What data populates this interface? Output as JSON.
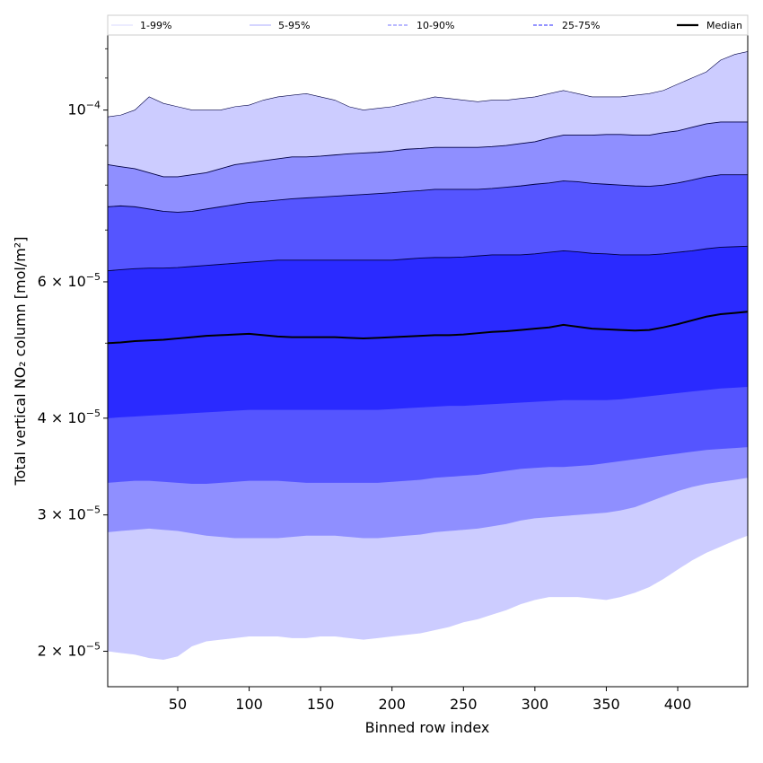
{
  "chart_data": {
    "type": "area",
    "title": "",
    "xlabel": "Binned row index",
    "ylabel": "Total vertical NO₂ column [mol/m²]",
    "xlim": [
      1,
      449
    ],
    "ylim": [
      1.8e-05,
      0.000125
    ],
    "yscale": "log",
    "grid": false,
    "legend_placement": "top, spanning full width",
    "x_ticks": [
      50,
      100,
      150,
      200,
      250,
      300,
      350,
      400
    ],
    "y_ticks": [
      {
        "value": 0.0001,
        "mantissa": "",
        "base": "10",
        "exp": "−4"
      },
      {
        "value": 6e-05,
        "mantissa": "6 × ",
        "base": "10",
        "exp": "−5"
      },
      {
        "value": 4e-05,
        "mantissa": "4 × ",
        "base": "10",
        "exp": "−5"
      },
      {
        "value": 3e-05,
        "mantissa": "3 × ",
        "base": "10",
        "exp": "−5"
      },
      {
        "value": 2e-05,
        "mantissa": "2 × ",
        "base": "10",
        "exp": "−5"
      }
    ],
    "x": [
      1,
      10,
      20,
      30,
      40,
      50,
      60,
      70,
      80,
      90,
      100,
      110,
      120,
      130,
      140,
      150,
      160,
      170,
      180,
      190,
      200,
      210,
      220,
      230,
      240,
      250,
      260,
      270,
      280,
      290,
      300,
      310,
      320,
      330,
      340,
      350,
      360,
      370,
      380,
      390,
      400,
      410,
      420,
      430,
      440,
      449
    ],
    "bands": [
      {
        "name": "1-99%",
        "color": "#ccccff",
        "upper": [
          9.8e-05,
          9.85e-05,
          0.0001,
          0.000104,
          0.000102,
          0.000101,
          0.0001,
          0.0001,
          0.0001,
          0.000101,
          0.0001015,
          0.000103,
          0.000104,
          0.0001045,
          0.000105,
          0.000104,
          0.000103,
          0.000101,
          0.0001,
          0.0001005,
          0.000101,
          0.000102,
          0.000103,
          0.000104,
          0.0001035,
          0.000103,
          0.0001025,
          0.000103,
          0.000103,
          0.0001035,
          0.000104,
          0.000105,
          0.000106,
          0.000105,
          0.000104,
          0.000104,
          0.000104,
          0.0001045,
          0.000105,
          0.000106,
          0.000108,
          0.00011,
          0.000112,
          0.000116,
          0.000118,
          0.000119
        ],
        "lower": [
          2e-05,
          1.99e-05,
          1.98e-05,
          1.96e-05,
          1.95e-05,
          1.97e-05,
          2.03e-05,
          2.06e-05,
          2.07e-05,
          2.08e-05,
          2.09e-05,
          2.09e-05,
          2.09e-05,
          2.08e-05,
          2.08e-05,
          2.09e-05,
          2.09e-05,
          2.08e-05,
          2.07e-05,
          2.08e-05,
          2.09e-05,
          2.1e-05,
          2.11e-05,
          2.13e-05,
          2.15e-05,
          2.18e-05,
          2.2e-05,
          2.23e-05,
          2.26e-05,
          2.3e-05,
          2.33e-05,
          2.35e-05,
          2.35e-05,
          2.35e-05,
          2.34e-05,
          2.33e-05,
          2.35e-05,
          2.38e-05,
          2.42e-05,
          2.48e-05,
          2.55e-05,
          2.62e-05,
          2.68e-05,
          2.73e-05,
          2.78e-05,
          2.82e-05
        ]
      },
      {
        "name": "5-95%",
        "color": "#8f8fff",
        "upper": [
          8.5e-05,
          8.45e-05,
          8.4e-05,
          8.3e-05,
          8.2e-05,
          8.2e-05,
          8.25e-05,
          8.3e-05,
          8.4e-05,
          8.5e-05,
          8.55e-05,
          8.6e-05,
          8.65e-05,
          8.7e-05,
          8.7e-05,
          8.72e-05,
          8.75e-05,
          8.78e-05,
          8.8e-05,
          8.82e-05,
          8.85e-05,
          8.9e-05,
          8.92e-05,
          8.95e-05,
          8.95e-05,
          8.95e-05,
          8.95e-05,
          8.97e-05,
          9e-05,
          9.05e-05,
          9.1e-05,
          9.2e-05,
          9.28e-05,
          9.28e-05,
          9.28e-05,
          9.3e-05,
          9.3e-05,
          9.28e-05,
          9.28e-05,
          9.35e-05,
          9.4e-05,
          9.5e-05,
          9.6e-05,
          9.65e-05,
          9.65e-05,
          9.65e-05
        ],
        "lower": [
          2.85e-05,
          2.86e-05,
          2.87e-05,
          2.88e-05,
          2.87e-05,
          2.86e-05,
          2.84e-05,
          2.82e-05,
          2.81e-05,
          2.8e-05,
          2.8e-05,
          2.8e-05,
          2.8e-05,
          2.81e-05,
          2.82e-05,
          2.82e-05,
          2.82e-05,
          2.81e-05,
          2.8e-05,
          2.8e-05,
          2.81e-05,
          2.82e-05,
          2.83e-05,
          2.85e-05,
          2.86e-05,
          2.87e-05,
          2.88e-05,
          2.9e-05,
          2.92e-05,
          2.95e-05,
          2.97e-05,
          2.98e-05,
          2.99e-05,
          3e-05,
          3.01e-05,
          3.02e-05,
          3.04e-05,
          3.07e-05,
          3.12e-05,
          3.17e-05,
          3.22e-05,
          3.26e-05,
          3.29e-05,
          3.31e-05,
          3.33e-05,
          3.35e-05
        ]
      },
      {
        "name": "10-90%",
        "color": "#5555ff",
        "upper": [
          7.5e-05,
          7.52e-05,
          7.5e-05,
          7.45e-05,
          7.4e-05,
          7.38e-05,
          7.4e-05,
          7.45e-05,
          7.5e-05,
          7.55e-05,
          7.6e-05,
          7.62e-05,
          7.65e-05,
          7.68e-05,
          7.7e-05,
          7.72e-05,
          7.74e-05,
          7.76e-05,
          7.78e-05,
          7.8e-05,
          7.82e-05,
          7.85e-05,
          7.87e-05,
          7.9e-05,
          7.9e-05,
          7.9e-05,
          7.9e-05,
          7.92e-05,
          7.95e-05,
          7.98e-05,
          8.02e-05,
          8.05e-05,
          8.1e-05,
          8.08e-05,
          8.04e-05,
          8.02e-05,
          8e-05,
          7.98e-05,
          7.97e-05,
          8e-05,
          8.05e-05,
          8.12e-05,
          8.2e-05,
          8.25e-05,
          8.25e-05,
          8.25e-05
        ],
        "lower": [
          3.3e-05,
          3.31e-05,
          3.32e-05,
          3.32e-05,
          3.31e-05,
          3.3e-05,
          3.29e-05,
          3.29e-05,
          3.3e-05,
          3.31e-05,
          3.32e-05,
          3.32e-05,
          3.32e-05,
          3.31e-05,
          3.3e-05,
          3.3e-05,
          3.3e-05,
          3.3e-05,
          3.3e-05,
          3.3e-05,
          3.31e-05,
          3.32e-05,
          3.33e-05,
          3.35e-05,
          3.36e-05,
          3.37e-05,
          3.38e-05,
          3.4e-05,
          3.42e-05,
          3.44e-05,
          3.45e-05,
          3.46e-05,
          3.46e-05,
          3.47e-05,
          3.48e-05,
          3.5e-05,
          3.52e-05,
          3.54e-05,
          3.56e-05,
          3.58e-05,
          3.6e-05,
          3.62e-05,
          3.64e-05,
          3.65e-05,
          3.66e-05,
          3.67e-05
        ]
      },
      {
        "name": "25-75%",
        "color": "#2a2aff",
        "upper": [
          6.2e-05,
          6.22e-05,
          6.24e-05,
          6.25e-05,
          6.25e-05,
          6.26e-05,
          6.28e-05,
          6.3e-05,
          6.32e-05,
          6.34e-05,
          6.36e-05,
          6.38e-05,
          6.4e-05,
          6.4e-05,
          6.4e-05,
          6.4e-05,
          6.4e-05,
          6.4e-05,
          6.4e-05,
          6.4e-05,
          6.4e-05,
          6.42e-05,
          6.44e-05,
          6.45e-05,
          6.45e-05,
          6.46e-05,
          6.48e-05,
          6.5e-05,
          6.5e-05,
          6.5e-05,
          6.52e-05,
          6.55e-05,
          6.58e-05,
          6.56e-05,
          6.53e-05,
          6.52e-05,
          6.5e-05,
          6.5e-05,
          6.5e-05,
          6.52e-05,
          6.55e-05,
          6.58e-05,
          6.62e-05,
          6.65e-05,
          6.66e-05,
          6.67e-05
        ],
        "lower": [
          4e-05,
          4.01e-05,
          4.02e-05,
          4.03e-05,
          4.04e-05,
          4.05e-05,
          4.06e-05,
          4.07e-05,
          4.08e-05,
          4.09e-05,
          4.1e-05,
          4.1e-05,
          4.1e-05,
          4.1e-05,
          4.1e-05,
          4.1e-05,
          4.1e-05,
          4.1e-05,
          4.1e-05,
          4.1e-05,
          4.11e-05,
          4.12e-05,
          4.13e-05,
          4.14e-05,
          4.15e-05,
          4.15e-05,
          4.16e-05,
          4.17e-05,
          4.18e-05,
          4.19e-05,
          4.2e-05,
          4.21e-05,
          4.22e-05,
          4.22e-05,
          4.22e-05,
          4.22e-05,
          4.23e-05,
          4.25e-05,
          4.27e-05,
          4.29e-05,
          4.31e-05,
          4.33e-05,
          4.35e-05,
          4.37e-05,
          4.38e-05,
          4.39e-05
        ]
      }
    ],
    "median": {
      "name": "Median",
      "color": "#000000",
      "values": [
        5e-05,
        5.01e-05,
        5.03e-05,
        5.04e-05,
        5.05e-05,
        5.07e-05,
        5.09e-05,
        5.11e-05,
        5.12e-05,
        5.13e-05,
        5.14e-05,
        5.12e-05,
        5.1e-05,
        5.09e-05,
        5.09e-05,
        5.09e-05,
        5.09e-05,
        5.08e-05,
        5.07e-05,
        5.08e-05,
        5.09e-05,
        5.1e-05,
        5.11e-05,
        5.12e-05,
        5.12e-05,
        5.13e-05,
        5.15e-05,
        5.17e-05,
        5.18e-05,
        5.2e-05,
        5.22e-05,
        5.24e-05,
        5.28e-05,
        5.25e-05,
        5.22e-05,
        5.21e-05,
        5.2e-05,
        5.19e-05,
        5.2e-05,
        5.24e-05,
        5.29e-05,
        5.35e-05,
        5.41e-05,
        5.45e-05,
        5.47e-05,
        5.49e-05
      ]
    },
    "legend": [
      {
        "label": "1-99%",
        "style": "solid-thin",
        "color": "#ccccff"
      },
      {
        "label": "5-95%",
        "style": "solid-thin",
        "color": "#8f8fff"
      },
      {
        "label": "10-90%",
        "style": "dashed",
        "color": "#8f8fff"
      },
      {
        "label": "25-75%",
        "style": "dashed",
        "color": "#5555ff"
      },
      {
        "label": "Median",
        "style": "solid-thick",
        "color": "#000000"
      }
    ]
  }
}
